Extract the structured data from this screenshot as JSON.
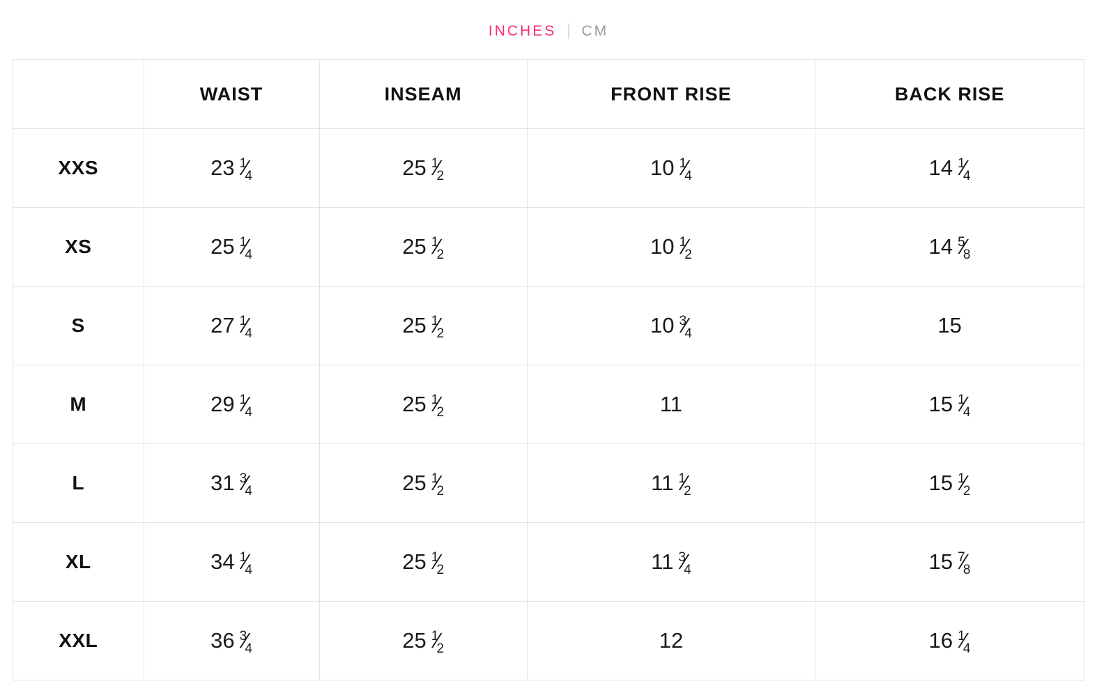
{
  "unit_toggle": {
    "inches_label": "INCHES",
    "divider": "|",
    "cm_label": "CM",
    "active_unit": "inches",
    "active_color": "#fb2b7a",
    "inactive_color": "#9b9b9b"
  },
  "fraction_slash": "⁄",
  "table": {
    "headers": [
      "",
      "WAIST",
      "INSEAM",
      "FRONT RISE",
      "BACK RISE"
    ],
    "rows": [
      {
        "size": "XXS",
        "values": [
          {
            "whole": "23",
            "frac": "1/4"
          },
          {
            "whole": "25",
            "frac": "1/2"
          },
          {
            "whole": "10",
            "frac": "1/4"
          },
          {
            "whole": "14",
            "frac": "1/4"
          }
        ]
      },
      {
        "size": "XS",
        "values": [
          {
            "whole": "25",
            "frac": "1/4"
          },
          {
            "whole": "25",
            "frac": "1/2"
          },
          {
            "whole": "10",
            "frac": "1/2"
          },
          {
            "whole": "14",
            "frac": "5/8"
          }
        ]
      },
      {
        "size": "S",
        "values": [
          {
            "whole": "27",
            "frac": "1/4"
          },
          {
            "whole": "25",
            "frac": "1/2"
          },
          {
            "whole": "10",
            "frac": "3/4"
          },
          {
            "whole": "15",
            "frac": null
          }
        ]
      },
      {
        "size": "M",
        "values": [
          {
            "whole": "29",
            "frac": "1/4"
          },
          {
            "whole": "25",
            "frac": "1/2"
          },
          {
            "whole": "11",
            "frac": null
          },
          {
            "whole": "15",
            "frac": "1/4"
          }
        ]
      },
      {
        "size": "L",
        "values": [
          {
            "whole": "31",
            "frac": "3/4"
          },
          {
            "whole": "25",
            "frac": "1/2"
          },
          {
            "whole": "11",
            "frac": "1/2"
          },
          {
            "whole": "15",
            "frac": "1/2"
          }
        ]
      },
      {
        "size": "XL",
        "values": [
          {
            "whole": "34",
            "frac": "1/4"
          },
          {
            "whole": "25",
            "frac": "1/2"
          },
          {
            "whole": "11",
            "frac": "3/4"
          },
          {
            "whole": "15",
            "frac": "7/8"
          }
        ]
      },
      {
        "size": "XXL",
        "values": [
          {
            "whole": "36",
            "frac": "3/4"
          },
          {
            "whole": "25",
            "frac": "1/2"
          },
          {
            "whole": "12",
            "frac": null
          },
          {
            "whole": "16",
            "frac": "1/4"
          }
        ]
      }
    ]
  }
}
